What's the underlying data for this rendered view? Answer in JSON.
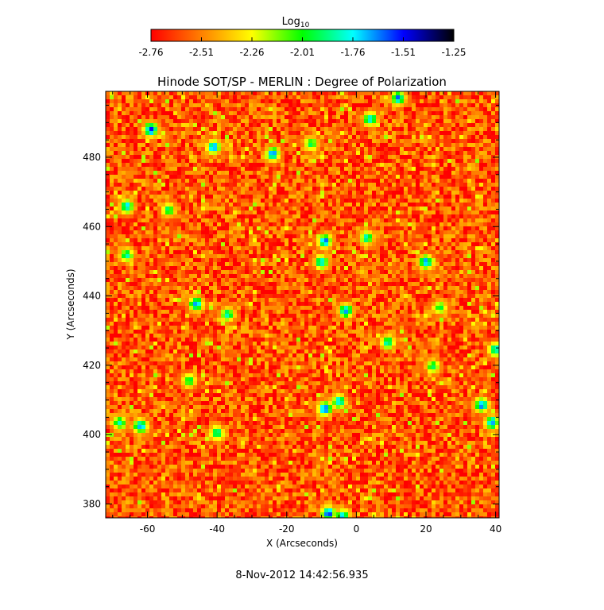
{
  "chart_data": {
    "type": "heatmap",
    "title": "Hinode SOT/SP - MERLIN : Degree of Polarization",
    "xlabel": "X (Arcseconds)",
    "ylabel": "Y (Arcseconds)",
    "xlim": [
      -72,
      41
    ],
    "ylim": [
      376,
      499
    ],
    "xticks": [
      -60,
      -40,
      -20,
      0,
      20,
      40
    ],
    "yticks": [
      380,
      400,
      420,
      440,
      460,
      480
    ],
    "colorbar": {
      "title": "Log",
      "title_subscript": "10",
      "range": [
        -2.76,
        -1.25
      ],
      "ticks": [
        "-2.76",
        "-2.51",
        "-2.26",
        "-2.01",
        "-1.76",
        "-1.51",
        "-1.25"
      ],
      "colormap": [
        "#ff0000",
        "#ff8000",
        "#ffff00",
        "#00ff00",
        "#00ffff",
        "#0000ff",
        "#000000"
      ]
    },
    "background_level": -2.6,
    "features": [
      {
        "x": -59,
        "y": 488,
        "v": -1.5
      },
      {
        "x": -41,
        "y": 483,
        "v": -1.6
      },
      {
        "x": -24,
        "y": 481,
        "v": -1.6
      },
      {
        "x": -66,
        "y": 466,
        "v": -1.7
      },
      {
        "x": -54,
        "y": 465,
        "v": -1.9
      },
      {
        "x": -13,
        "y": 484,
        "v": -1.9
      },
      {
        "x": 4,
        "y": 491,
        "v": -1.7
      },
      {
        "x": 12,
        "y": 497,
        "v": -1.6
      },
      {
        "x": -9,
        "y": 456,
        "v": -1.6
      },
      {
        "x": -10,
        "y": 450,
        "v": -1.7
      },
      {
        "x": 3,
        "y": 457,
        "v": -1.8
      },
      {
        "x": 20,
        "y": 450,
        "v": -1.6
      },
      {
        "x": -46,
        "y": 438,
        "v": -1.6
      },
      {
        "x": -3,
        "y": 436,
        "v": -1.6
      },
      {
        "x": -37,
        "y": 435,
        "v": -1.8
      },
      {
        "x": 24,
        "y": 437,
        "v": -1.9
      },
      {
        "x": 9,
        "y": 427,
        "v": -1.8
      },
      {
        "x": -62,
        "y": 403,
        "v": -1.6
      },
      {
        "x": -68,
        "y": 404,
        "v": -1.8
      },
      {
        "x": -9,
        "y": 408,
        "v": -1.5
      },
      {
        "x": -5,
        "y": 410,
        "v": -1.7
      },
      {
        "x": -40,
        "y": 401,
        "v": -1.8
      },
      {
        "x": 36,
        "y": 409,
        "v": -1.6
      },
      {
        "x": 39,
        "y": 404,
        "v": -1.6
      },
      {
        "x": -8,
        "y": 378,
        "v": -1.5
      },
      {
        "x": -4,
        "y": 377,
        "v": -1.6
      },
      {
        "x": -48,
        "y": 416,
        "v": -1.9
      },
      {
        "x": 22,
        "y": 420,
        "v": -1.9
      },
      {
        "x": -66,
        "y": 452,
        "v": -1.8
      },
      {
        "x": 40,
        "y": 425,
        "v": -1.7
      }
    ]
  },
  "timestamp": "8-Nov-2012 14:42:56.935"
}
